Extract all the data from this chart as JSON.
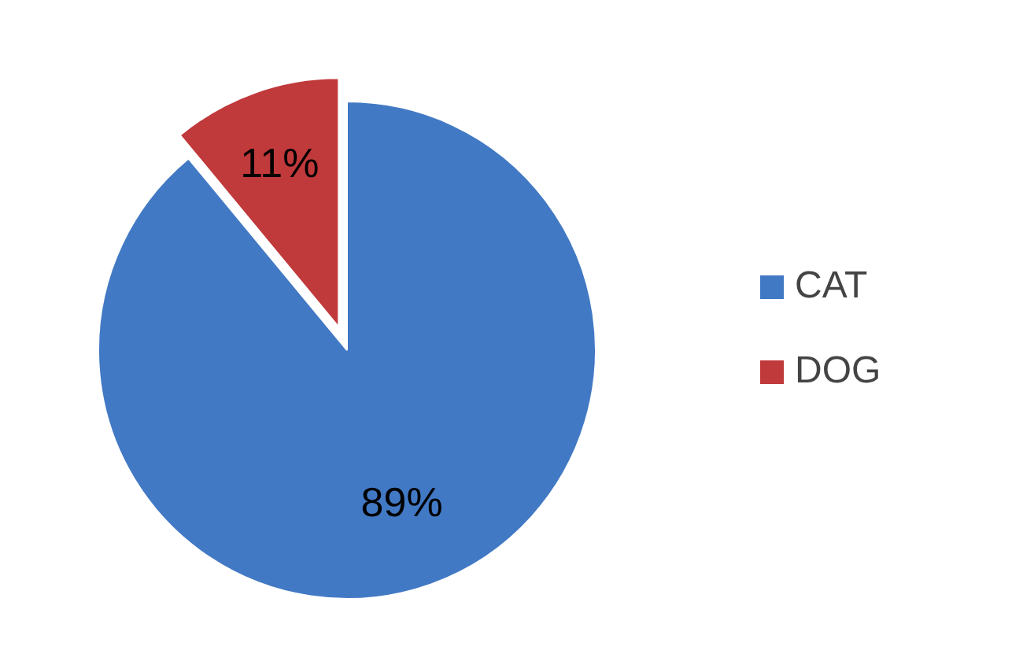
{
  "chart_data": {
    "type": "pie",
    "categories": [
      "CAT",
      "DOG"
    ],
    "values": [
      89,
      11
    ],
    "colors": [
      "#4279c4",
      "#c0393b"
    ],
    "value_labels": [
      "89%",
      "11%"
    ],
    "legend": "right"
  }
}
